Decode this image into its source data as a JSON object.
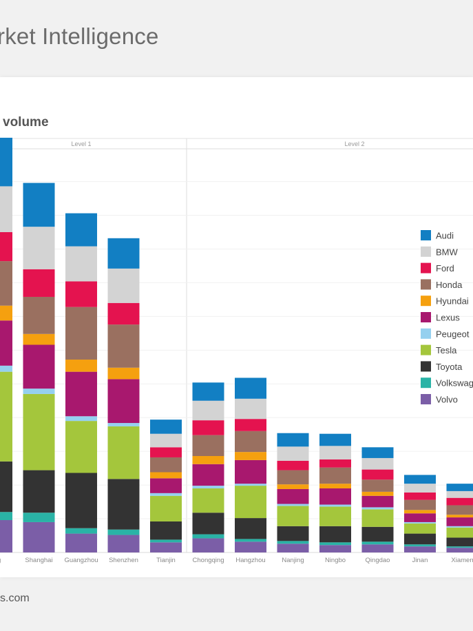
{
  "header": {
    "title": "rket Intelligence"
  },
  "chart_title": "volume",
  "footer": {
    "text": "s.com"
  },
  "chart_data": {
    "type": "bar",
    "stacked": true,
    "groups": [
      {
        "label": "Level 1",
        "categories": [
          "ing",
          "Shanghai",
          "Guangzhou",
          "Shenzhen",
          "Tianjin"
        ]
      },
      {
        "label": "Level 2",
        "categories": [
          "Chongqing",
          "Hangzhou",
          "Nanjing",
          "Ningbo",
          "Qingdao",
          "Jinan",
          "Xiamen"
        ]
      }
    ],
    "categories": [
      "ing",
      "Shanghai",
      "Guangzhou",
      "Shenzhen",
      "Tianjin",
      "Chongqing",
      "Hangzhou",
      "Nanjing",
      "Ningbo",
      "Qingdao",
      "Jinan",
      "Xiamen"
    ],
    "series": [
      {
        "name": "Volvo",
        "color": "#7b5ea7",
        "values": [
          48,
          45,
          28,
          26,
          15,
          21,
          16,
          13,
          11,
          12,
          9,
          7
        ]
      },
      {
        "name": "Volkswagen",
        "color": "#2ab3a6",
        "values": [
          12,
          14,
          8,
          8,
          4,
          6,
          4,
          4,
          4,
          4,
          3,
          2
        ]
      },
      {
        "name": "Toyota",
        "color": "#333333",
        "values": [
          75,
          63,
          82,
          75,
          27,
          32,
          31,
          22,
          24,
          22,
          16,
          13
        ]
      },
      {
        "name": "Tesla",
        "color": "#a4c63c",
        "values": [
          133,
          113,
          77,
          78,
          38,
          36,
          48,
          30,
          29,
          26,
          15,
          15
        ]
      },
      {
        "name": "Peugeot",
        "color": "#95d0ef",
        "values": [
          9,
          8,
          7,
          5,
          4,
          4,
          3,
          3,
          3,
          3,
          2,
          2
        ]
      },
      {
        "name": "Lexus",
        "color": "#a8186e",
        "values": [
          67,
          65,
          66,
          65,
          22,
          32,
          35,
          22,
          24,
          17,
          13,
          13
        ]
      },
      {
        "name": "Hyundai",
        "color": "#f5a00f",
        "values": [
          22,
          16,
          18,
          17,
          9,
          12,
          12,
          7,
          7,
          6,
          5,
          4
        ]
      },
      {
        "name": "Honda",
        "color": "#9a7060",
        "values": [
          66,
          55,
          78,
          64,
          22,
          31,
          31,
          21,
          24,
          18,
          15,
          14
        ]
      },
      {
        "name": "Ford",
        "color": "#e4134f",
        "values": [
          43,
          41,
          38,
          32,
          15,
          22,
          18,
          14,
          12,
          15,
          11,
          11
        ]
      },
      {
        "name": "BMW",
        "color": "#d3d3d3",
        "values": [
          68,
          63,
          52,
          51,
          20,
          29,
          30,
          21,
          20,
          17,
          13,
          10
        ]
      },
      {
        "name": "Audi",
        "color": "#127fc3",
        "values": [
          72,
          65,
          49,
          45,
          21,
          27,
          31,
          20,
          18,
          16,
          13,
          11
        ]
      }
    ],
    "legend": {
      "position": "right",
      "order": [
        "Audi",
        "BMW",
        "Ford",
        "Honda",
        "Hyundai",
        "Lexus",
        "Peugeot",
        "Tesla",
        "Toyota",
        "Volkswag",
        "Volvo"
      ]
    },
    "ylim": [
      0,
      620
    ],
    "grid": true
  }
}
